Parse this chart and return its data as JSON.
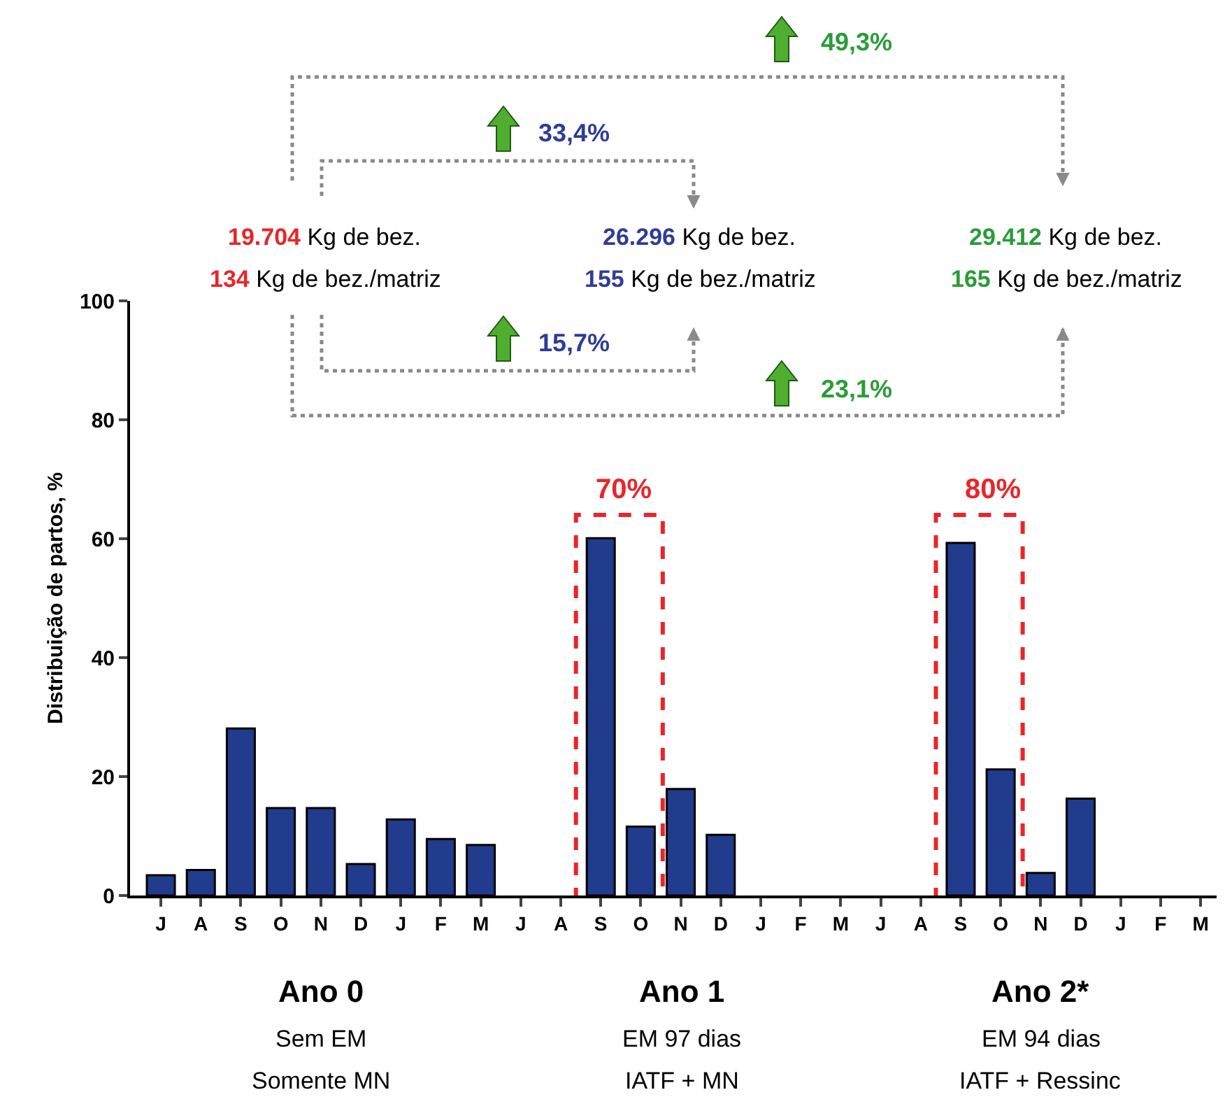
{
  "chart_data": {
    "type": "bar",
    "ylabel": "Distribuição de partos, %",
    "categories": [
      "J",
      "A",
      "S",
      "O",
      "N",
      "D",
      "J",
      "F",
      "M",
      "J",
      "A",
      "S",
      "O",
      "N",
      "D",
      "J",
      "F",
      "M",
      "J",
      "A",
      "S",
      "O",
      "N",
      "D",
      "J",
      "F",
      "M"
    ],
    "values": [
      3.4,
      4.3,
      28.1,
      14.7,
      14.7,
      5.3,
      12.8,
      9.5,
      8.5,
      0,
      0,
      60.1,
      11.6,
      17.9,
      10.2,
      0,
      0,
      0,
      0,
      0,
      59.3,
      21.2,
      3.8,
      16.3,
      0,
      0,
      0
    ],
    "color": "#213c8c",
    "ylim": [
      0,
      100
    ],
    "yticks": [
      0,
      20,
      40,
      60,
      80,
      100
    ],
    "annotations": [
      "19.704 Kg de bez.",
      "134 Kg de bez./matriz",
      "26.296 Kg de bez.",
      "155 Kg de bez./matriz",
      "29.412 Kg de bez.",
      "165 Kg de bez./matriz",
      "49,3%",
      "33,4%",
      "15,7%",
      "23,1%",
      "70%",
      "80%",
      "Ano 0",
      "Sem EM",
      "Somente MN",
      "Ano 1",
      "EM 97 dias",
      "IATF + MN",
      "Ano 2*",
      "EM 94 dias",
      "IATF + Ressinc"
    ]
  }
}
